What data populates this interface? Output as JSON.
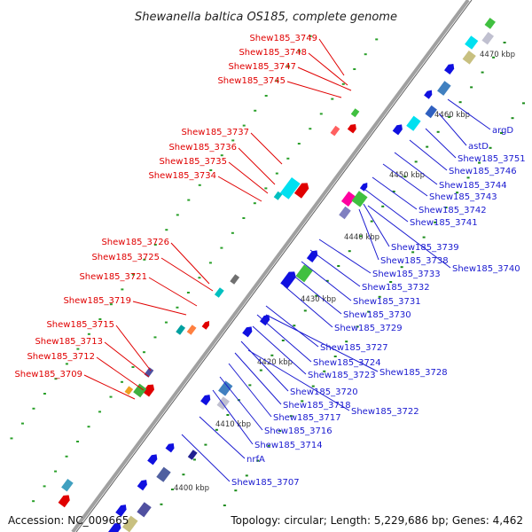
{
  "title": "Shewanella baltica OS185, complete genome",
  "footer": {
    "accession": "Accession: NC_009665",
    "topology": "Topology: circular; Length: 5,229,686 bp; Genes: 4,462"
  },
  "colors": {
    "left_label": "#e00000",
    "right_label": "#1a1ad0",
    "backbone": "#a0a0a0",
    "tick": "#1a8c1a"
  },
  "ticks": [
    "4400 kbp",
    "4410 kbp",
    "4420 kbp",
    "4430 kbp",
    "4440 kbp",
    "4450 kbp",
    "4460 kbp",
    "4470 kbp"
  ],
  "left_labels": [
    "Shew185_3749",
    "Shew185_3748",
    "Shew185_3747",
    "Shew185_3745",
    "Shew185_3737",
    "Shew185_3736",
    "Shew185_3735",
    "Shew185_3734",
    "Shew185_3726",
    "Shew185_3725",
    "Shew185_3721",
    "Shew185_3719",
    "Shew185_3715",
    "Shew185_3713",
    "Shew185_3712",
    "Shew185_3709"
  ],
  "right_labels": [
    "argD",
    "astD",
    "Shew185_3751",
    "Shew185_3746",
    "Shew185_3744",
    "Shew185_3743",
    "Shew185_3742",
    "Shew185_3741",
    "Shew185_3739",
    "Shew185_3738",
    "Shew185_3740",
    "Shew185_3733",
    "Shew185_3732",
    "Shew185_3731",
    "Shew185_3730",
    "Shew185_3729",
    "Shew185_3727",
    "Shew185_3724",
    "Shew185_3723",
    "Shew185_3728",
    "Shew185_3720",
    "Shew185_3718",
    "Shew185_3722",
    "Shew185_3717",
    "Shew185_3716",
    "Shew185_3714",
    "nrfA",
    "Shew185_3707"
  ]
}
